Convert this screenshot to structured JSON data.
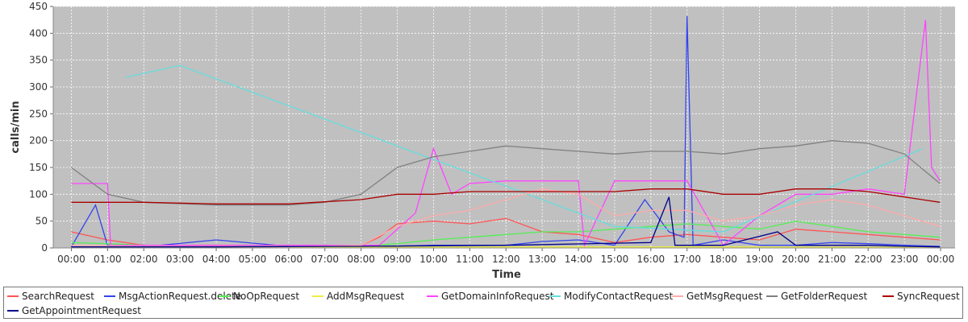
{
  "chart_data": {
    "type": "line",
    "title": "",
    "xlabel": "Time",
    "ylabel": "calls/min",
    "ylim": [
      0,
      450
    ],
    "yticks": [
      "0",
      "50",
      "100",
      "150",
      "200",
      "250",
      "300",
      "350",
      "400",
      "450"
    ],
    "xlim_hours": [
      -0.5,
      24.4
    ],
    "xticks": [
      "00:00",
      "01:00",
      "02:00",
      "03:00",
      "04:00",
      "05:00",
      "06:00",
      "07:00",
      "08:00",
      "09:00",
      "10:00",
      "11:00",
      "12:00",
      "13:00",
      "14:00",
      "15:00",
      "16:00",
      "17:00",
      "18:00",
      "19:00",
      "20:00",
      "21:00",
      "22:00",
      "23:00",
      "00:00"
    ],
    "grid": true,
    "plot_background": "#c0c0c0",
    "legend_position": "bottom",
    "series": [
      {
        "name": "SearchRequest",
        "color": "#ff5555",
        "x": [
          "00:00",
          "01:00",
          "02:00",
          "03:00",
          "04:00",
          "05:00",
          "06:00",
          "07:00",
          "08:00",
          "08:30",
          "09:00",
          "10:00",
          "11:00",
          "12:00",
          "13:00",
          "14:00",
          "15:00",
          "16:00",
          "17:00",
          "18:00",
          "19:00",
          "20:00",
          "21:00",
          "22:00",
          "23:00",
          "23:59"
        ],
        "values": [
          30,
          15,
          5,
          3,
          3,
          2,
          2,
          3,
          5,
          20,
          45,
          50,
          45,
          55,
          30,
          25,
          10,
          20,
          25,
          20,
          15,
          35,
          30,
          25,
          20,
          15
        ]
      },
      {
        "name": "MsgActionRequest.delete",
        "color": "#3344ee",
        "x": [
          "00:00",
          "00:40",
          "01:00",
          "02:00",
          "04:00",
          "06:00",
          "08:00",
          "10:00",
          "12:00",
          "13:00",
          "14:00",
          "15:00",
          "15:50",
          "16:30",
          "16:55",
          "17:00",
          "17:10",
          "18:00",
          "19:00",
          "20:00",
          "21:00",
          "22:00",
          "23:00",
          "23:59"
        ],
        "values": [
          2,
          80,
          5,
          2,
          15,
          3,
          2,
          5,
          5,
          12,
          15,
          5,
          90,
          30,
          20,
          432,
          5,
          15,
          5,
          5,
          10,
          8,
          5,
          3
        ]
      },
      {
        "name": "NoOpRequest",
        "color": "#55ee55",
        "x": [
          "00:00",
          "01:00",
          "02:00",
          "04:00",
          "06:00",
          "08:00",
          "09:00",
          "10:00",
          "11:00",
          "12:00",
          "13:00",
          "14:00",
          "15:00",
          "16:00",
          "17:00",
          "18:00",
          "19:00",
          "20:00",
          "21:00",
          "22:00",
          "23:00",
          "23:59"
        ],
        "values": [
          10,
          8,
          5,
          5,
          3,
          3,
          8,
          15,
          20,
          25,
          30,
          30,
          35,
          40,
          45,
          40,
          35,
          50,
          40,
          30,
          25,
          20
        ]
      },
      {
        "name": "AddMsgRequest",
        "color": "#eeee44",
        "x": [
          "00:00",
          "06:00",
          "12:00",
          "18:00",
          "23:59"
        ],
        "values": [
          1,
          1,
          2,
          2,
          1
        ]
      },
      {
        "name": "GetDomainInfoRequest",
        "color": "#ff44ff",
        "x": [
          "00:00",
          "01:00",
          "01:05",
          "08:30",
          "09:30",
          "10:00",
          "10:30",
          "11:00",
          "12:00",
          "13:00",
          "14:00",
          "14:10",
          "15:00",
          "16:00",
          "17:00",
          "18:00",
          "19:00",
          "20:00",
          "21:00",
          "22:00",
          "23:00",
          "23:35",
          "23:45",
          "23:59"
        ],
        "values": [
          120,
          120,
          5,
          5,
          65,
          185,
          100,
          120,
          125,
          125,
          125,
          5,
          125,
          125,
          125,
          5,
          60,
          100,
          100,
          110,
          100,
          425,
          150,
          125
        ]
      },
      {
        "name": "ModifyContactRequest",
        "color": "#66dddd",
        "x": [
          "01:30",
          "03:00",
          "15:00",
          "18:00",
          "23:30"
        ],
        "values": [
          318,
          340,
          40,
          30,
          185
        ]
      },
      {
        "name": "GetMsgRequest",
        "color": "#ffaaaa",
        "x": [
          "00:00",
          "02:00",
          "06:00",
          "08:00",
          "09:00",
          "10:00",
          "11:00",
          "12:00",
          "13:00",
          "14:00",
          "15:00",
          "16:00",
          "17:00",
          "18:00",
          "19:00",
          "20:00",
          "21:00",
          "22:00",
          "23:00",
          "23:59"
        ],
        "values": [
          5,
          3,
          2,
          5,
          40,
          60,
          70,
          90,
          110,
          100,
          60,
          70,
          70,
          50,
          60,
          80,
          90,
          80,
          60,
          40
        ]
      },
      {
        "name": "GetFolderRequest",
        "color": "#808080",
        "x": [
          "00:00",
          "01:00",
          "02:00",
          "04:00",
          "06:00",
          "07:00",
          "08:00",
          "09:00",
          "10:00",
          "11:00",
          "12:00",
          "13:00",
          "14:00",
          "15:00",
          "16:00",
          "17:00",
          "18:00",
          "19:00",
          "20:00",
          "21:00",
          "22:00",
          "23:00",
          "23:59"
        ],
        "values": [
          150,
          100,
          85,
          80,
          80,
          85,
          100,
          150,
          170,
          180,
          190,
          185,
          180,
          175,
          180,
          180,
          175,
          185,
          190,
          200,
          195,
          175,
          120
        ]
      },
      {
        "name": "SyncRequest",
        "color": "#aa0000",
        "x": [
          "00:00",
          "02:00",
          "04:00",
          "06:00",
          "08:00",
          "09:00",
          "10:00",
          "11:00",
          "12:00",
          "13:00",
          "14:00",
          "15:00",
          "16:00",
          "17:00",
          "18:00",
          "19:00",
          "20:00",
          "21:00",
          "22:00",
          "23:00",
          "23:59"
        ],
        "values": [
          85,
          85,
          82,
          82,
          90,
          100,
          100,
          105,
          105,
          105,
          105,
          105,
          110,
          110,
          100,
          100,
          110,
          110,
          105,
          95,
          85
        ]
      },
      {
        "name": "GetAppointmentRequest",
        "color": "#000088",
        "x": [
          "00:00",
          "04:00",
          "08:00",
          "12:00",
          "16:00",
          "16:30",
          "16:40",
          "17:00",
          "18:00",
          "19:30",
          "20:00",
          "21:00",
          "22:00",
          "23:00",
          "23:59"
        ],
        "values": [
          2,
          2,
          3,
          5,
          10,
          95,
          5,
          5,
          5,
          30,
          5,
          5,
          5,
          3,
          2
        ]
      }
    ]
  }
}
